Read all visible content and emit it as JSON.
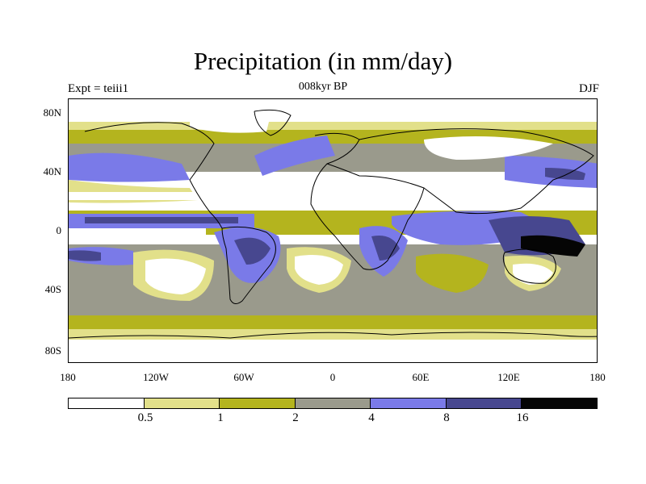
{
  "title": "Precipitation (in mm/day)",
  "subtitle_left": "Expt = teiii1",
  "subtitle_center": "008kyr BP",
  "subtitle_right": "DJF",
  "y_ticks": [
    "80N",
    "40N",
    "0",
    "40S",
    "80S"
  ],
  "x_ticks": [
    "180",
    "120W",
    "60W",
    "0",
    "60E",
    "120E",
    "180"
  ],
  "colorbar": {
    "colors": [
      "#ffffff",
      "#e2e08a",
      "#b4b41e",
      "#9a9a8c",
      "#7a7ae8",
      "#47478f",
      "#050505"
    ],
    "labels": [
      "0.5",
      "1",
      "2",
      "4",
      "8",
      "16"
    ]
  }
}
